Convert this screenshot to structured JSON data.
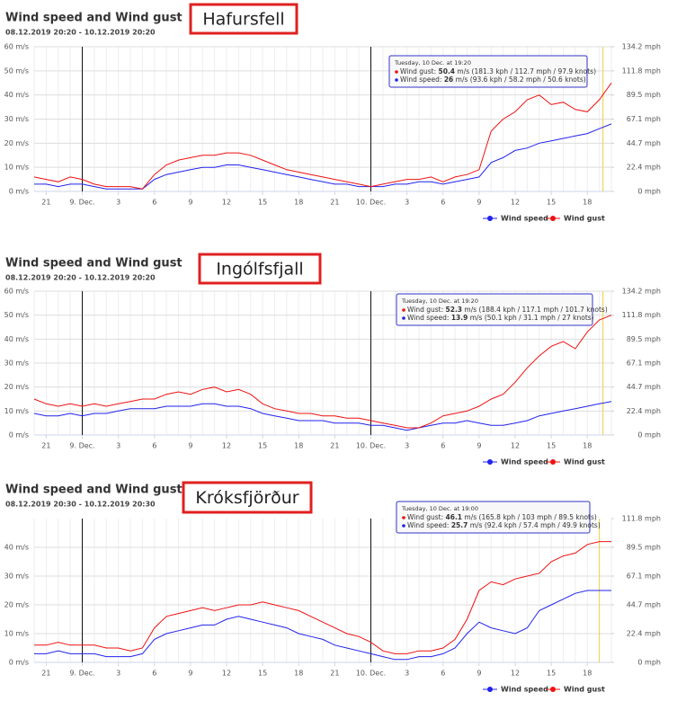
{
  "chart_data": [
    {
      "type": "line",
      "title": "Wind speed and Wind gust",
      "subtitle": "08.12.2019 20:20 - 10.12.2019 20:20",
      "annotation": "Hafursfell",
      "categories": [
        null,
        "21",
        null,
        null,
        "9. Dec.",
        null,
        null,
        "3",
        null,
        null,
        "6",
        null,
        null,
        "9",
        null,
        null,
        "12",
        null,
        null,
        "15",
        null,
        null,
        "18",
        null,
        null,
        "21",
        null,
        null,
        "10. Dec.",
        null,
        null,
        "3",
        null,
        null,
        "6",
        null,
        null,
        "9",
        null,
        null,
        "12",
        null,
        null,
        "15",
        null,
        null,
        "18",
        null,
        null
      ],
      "series": [
        {
          "name": "Wind speed",
          "color": "#2222ee",
          "values": [
            3,
            3,
            2,
            3,
            3,
            2,
            1,
            1,
            1,
            1,
            5,
            7,
            8,
            9,
            10,
            10,
            11,
            11,
            10,
            9,
            8,
            7,
            6,
            5,
            4,
            3,
            3,
            2,
            2,
            2,
            3,
            3,
            4,
            4,
            3,
            4,
            5,
            6,
            12,
            14,
            17,
            18,
            20,
            21,
            22,
            23,
            24,
            26,
            28
          ]
        },
        {
          "name": "Wind gust",
          "color": "#ee1111",
          "values": [
            6,
            5,
            4,
            6,
            5,
            3,
            2,
            2,
            2,
            1,
            7,
            11,
            13,
            14,
            15,
            15,
            16,
            16,
            15,
            13,
            11,
            9,
            8,
            7,
            6,
            5,
            4,
            3,
            2,
            3,
            4,
            5,
            5,
            6,
            4,
            6,
            7,
            9,
            25,
            30,
            33,
            38,
            40,
            36,
            37,
            34,
            33,
            38,
            45
          ]
        }
      ],
      "ylim": [
        0,
        60
      ],
      "yticks": [
        {
          "value": 0,
          "label": "0 m/s"
        },
        {
          "value": 10,
          "label": "10 m/s"
        },
        {
          "value": 20,
          "label": "20 m/s"
        },
        {
          "value": 30,
          "label": "30 m/s"
        },
        {
          "value": 40,
          "label": "40 m/s"
        },
        {
          "value": 50,
          "label": "50 m/s"
        },
        {
          "value": 60,
          "label": "60 m/s"
        }
      ],
      "y2lim": [
        0,
        134.2
      ],
      "y2ticks": [
        {
          "value": 0,
          "label": "0 mph"
        },
        {
          "value": 22.4,
          "label": "22.4 mph"
        },
        {
          "value": 44.7,
          "label": "44.7 mph"
        },
        {
          "value": 67.1,
          "label": "67.1 mph"
        },
        {
          "value": 89.5,
          "label": "89.5 mph"
        },
        {
          "value": 111.8,
          "label": "111.8 mph"
        },
        {
          "value": 134.2,
          "label": "134.2 mph"
        }
      ],
      "grid": true,
      "legend": "bottom-right",
      "tooltip": {
        "header": "Tuesday, 10 Dec. at 19:20",
        "rows": [
          {
            "label": "Wind gust:",
            "value": 50.4,
            "detail": "m/s (181.3 kph / 112.7 mph / 97.9 knots)"
          },
          {
            "label": "Wind speed:",
            "value": 26,
            "detail": "m/s (93.6 kph / 58.2 mph / 50.6 knots)"
          }
        ]
      }
    },
    {
      "type": "line",
      "title": "Wind speed and Wind gust",
      "subtitle": "08.12.2019 20:20 - 10.12.2019 20:20",
      "annotation": "Ingólfsfjall",
      "categories": [
        null,
        "21",
        null,
        null,
        "9. Dec.",
        null,
        null,
        "3",
        null,
        null,
        "6",
        null,
        null,
        "9",
        null,
        null,
        "12",
        null,
        null,
        "15",
        null,
        null,
        "18",
        null,
        null,
        "21",
        null,
        null,
        "10. Dec.",
        null,
        null,
        "3",
        null,
        null,
        "6",
        null,
        null,
        "9",
        null,
        null,
        "12",
        null,
        null,
        "15",
        null,
        null,
        "18",
        null,
        null
      ],
      "series": [
        {
          "name": "Wind speed",
          "color": "#2222ee",
          "values": [
            9,
            8,
            8,
            9,
            8,
            9,
            9,
            10,
            11,
            11,
            11,
            12,
            12,
            12,
            13,
            13,
            12,
            12,
            11,
            9,
            8,
            7,
            6,
            6,
            6,
            5,
            5,
            5,
            4,
            4,
            3,
            2,
            3,
            4,
            5,
            5,
            6,
            5,
            4,
            4,
            5,
            6,
            8,
            9,
            10,
            11,
            12,
            13,
            14
          ]
        },
        {
          "name": "Wind gust",
          "color": "#ee1111",
          "values": [
            15,
            13,
            12,
            13,
            12,
            13,
            12,
            13,
            14,
            15,
            15,
            17,
            18,
            17,
            19,
            20,
            18,
            19,
            17,
            13,
            11,
            10,
            9,
            9,
            8,
            8,
            7,
            7,
            6,
            5,
            4,
            3,
            3,
            5,
            8,
            9,
            10,
            12,
            15,
            17,
            22,
            28,
            33,
            37,
            39,
            36,
            43,
            48,
            50
          ]
        }
      ],
      "ylim": [
        0,
        60
      ],
      "yticks": [
        {
          "value": 0,
          "label": "0 m/s"
        },
        {
          "value": 10,
          "label": "10 m/s"
        },
        {
          "value": 20,
          "label": "20 m/s"
        },
        {
          "value": 30,
          "label": "30 m/s"
        },
        {
          "value": 40,
          "label": "40 m/s"
        },
        {
          "value": 50,
          "label": "50 m/s"
        },
        {
          "value": 60,
          "label": "60 m/s"
        }
      ],
      "y2lim": [
        0,
        134.2
      ],
      "y2ticks": [
        {
          "value": 0,
          "label": "0 mph"
        },
        {
          "value": 22.4,
          "label": "22.4 mph"
        },
        {
          "value": 44.7,
          "label": "44.7 mph"
        },
        {
          "value": 67.1,
          "label": "67.1 mph"
        },
        {
          "value": 89.5,
          "label": "89.5 mph"
        },
        {
          "value": 111.8,
          "label": "111.8 mph"
        },
        {
          "value": 134.2,
          "label": "134.2 mph"
        }
      ],
      "grid": true,
      "legend": "bottom-right",
      "tooltip": {
        "header": "Tuesday, 10 Dec. at 19:20",
        "rows": [
          {
            "label": "Wind gust:",
            "value": 52.3,
            "detail": "m/s (188.4 kph / 117.1 mph / 101.7 knots)"
          },
          {
            "label": "Wind speed:",
            "value": 13.9,
            "detail": "m/s (50.1 kph / 31.1 mph / 27 knots)"
          }
        ]
      }
    },
    {
      "type": "line",
      "title": "Wind speed and Wind gust",
      "subtitle": "08.12.2019 20:30 - 10.12.2019 20:30",
      "annotation": "Króksfjörður",
      "categories": [
        null,
        "21",
        null,
        null,
        "9. Dec.",
        null,
        null,
        "3",
        null,
        null,
        "6",
        null,
        null,
        "9",
        null,
        null,
        "12",
        null,
        null,
        "15",
        null,
        null,
        "18",
        null,
        null,
        "21",
        null,
        null,
        "10. Dec.",
        null,
        null,
        "3",
        null,
        null,
        "6",
        null,
        null,
        "9",
        null,
        null,
        "12",
        null,
        null,
        "15",
        null,
        null,
        "18",
        null,
        null
      ],
      "series": [
        {
          "name": "Wind speed",
          "color": "#2222ee",
          "values": [
            3,
            3,
            4,
            3,
            3,
            3,
            2,
            2,
            2,
            3,
            8,
            10,
            11,
            12,
            13,
            13,
            15,
            16,
            15,
            14,
            13,
            12,
            10,
            9,
            8,
            6,
            5,
            4,
            3,
            2,
            1,
            1,
            2,
            2,
            3,
            5,
            10,
            14,
            12,
            11,
            10,
            12,
            18,
            20,
            22,
            24,
            25,
            25,
            25
          ]
        },
        {
          "name": "Wind gust",
          "color": "#ee1111",
          "values": [
            6,
            6,
            7,
            6,
            6,
            6,
            5,
            5,
            4,
            5,
            12,
            16,
            17,
            18,
            19,
            18,
            19,
            20,
            20,
            21,
            20,
            19,
            18,
            16,
            14,
            12,
            10,
            9,
            7,
            4,
            3,
            3,
            4,
            4,
            5,
            8,
            15,
            25,
            28,
            27,
            29,
            30,
            31,
            35,
            37,
            38,
            41,
            42,
            42
          ]
        }
      ],
      "ylim": [
        0,
        50
      ],
      "yticks": [
        {
          "value": 0,
          "label": "0 m/s"
        },
        {
          "value": 10,
          "label": "10 m/s"
        },
        {
          "value": 20,
          "label": "20 m/s"
        },
        {
          "value": 30,
          "label": "30 m/s"
        },
        {
          "value": 40,
          "label": "40 m/s"
        }
      ],
      "y2lim": [
        0,
        111.8
      ],
      "y2ticks": [
        {
          "value": 0,
          "label": "0 mph"
        },
        {
          "value": 22.4,
          "label": "22.4 mph"
        },
        {
          "value": 44.7,
          "label": "44.7 mph"
        },
        {
          "value": 67.1,
          "label": "67.1 mph"
        },
        {
          "value": 89.5,
          "label": "89.5 mph"
        },
        {
          "value": 111.8,
          "label": "111.8 mph"
        }
      ],
      "grid": true,
      "legend": "bottom-right",
      "tooltip": {
        "header": "Tuesday, 10 Dec. at 19:00",
        "rows": [
          {
            "label": "Wind gust:",
            "value": 46.1,
            "detail": "m/s (165.8 kph / 103 mph / 89.5 knots)"
          },
          {
            "label": "Wind speed:",
            "value": 25.7,
            "detail": "m/s (92.4 kph / 57.4 mph / 49.9 knots)"
          }
        ]
      }
    }
  ]
}
